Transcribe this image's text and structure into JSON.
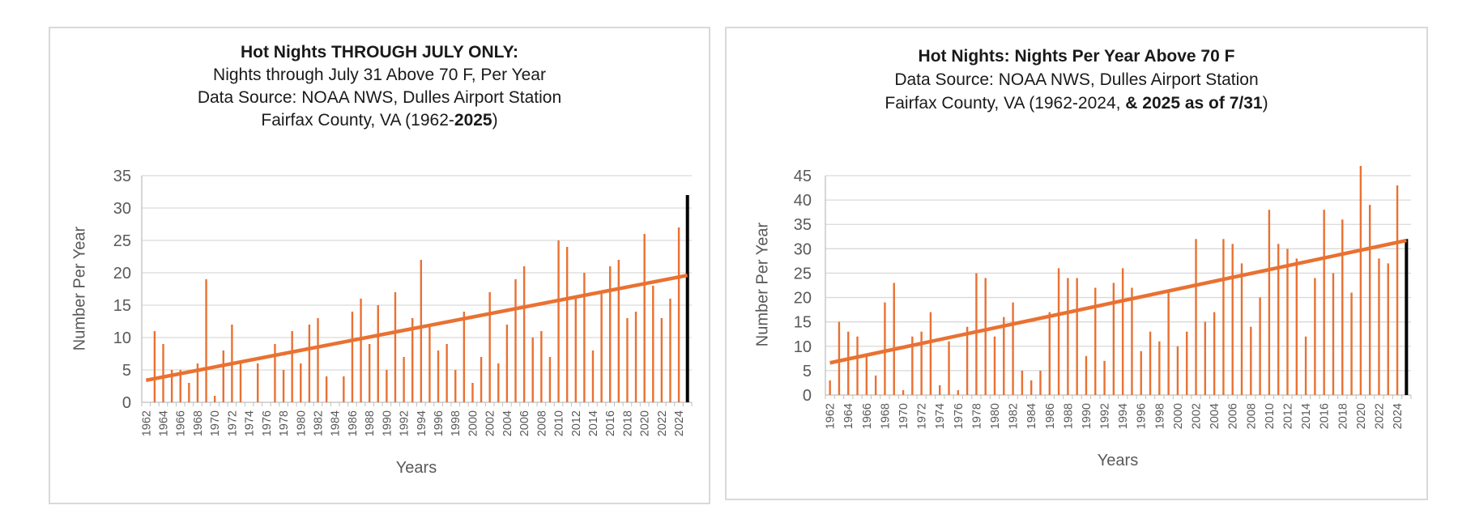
{
  "page": {
    "background": "#FFFFFF",
    "description": "Two Excel-style bar charts of hot nights per year at Dulles Airport"
  },
  "colors": {
    "bar": "#E97132",
    "last_bar": "#000000",
    "trendline": "#E97132",
    "gridline": "#D9D9D9",
    "axis_line": "#BFBFBF",
    "tick_text": "#595959",
    "axis_title_text": "#595959",
    "title_text": "#1A1A1A",
    "panel_border": "#D9D9D9",
    "panel_background": "#FFFFFF"
  },
  "chart_data": [
    {
      "id": "hot-nights-through-july",
      "type": "bar",
      "title_lines": [
        [
          {
            "t": "Hot Nights THROUGH JULY ONLY:",
            "b": true
          }
        ],
        [
          {
            "t": "Nights through July 31 Above 70 F, Per Year",
            "b": false
          }
        ],
        [
          {
            "t": "Data Source: NOAA NWS, Dulles Airport Station",
            "b": false
          }
        ],
        [
          {
            "t": "Fairfax County, VA (1962-",
            "b": false
          },
          {
            "t": "2025",
            "b": true
          },
          {
            "t": ")",
            "b": false
          }
        ]
      ],
      "xlabel": "Years",
      "ylabel": "Number Per Year",
      "ylim": [
        0,
        35
      ],
      "ytick_step": 5,
      "y_tick_labels": [
        "0",
        "5",
        "10",
        "15",
        "20",
        "25",
        "30",
        "35"
      ],
      "x_tick_labels": [
        "1962",
        "1964",
        "1966",
        "1968",
        "1970",
        "1972",
        "1974",
        "1976",
        "1978",
        "1980",
        "1982",
        "1984",
        "1986",
        "1988",
        "1990",
        "1992",
        "1994",
        "1996",
        "1998",
        "2000",
        "2002",
        "2004",
        "2006",
        "2008",
        "2010",
        "2012",
        "2014",
        "2016",
        "2018",
        "2020",
        "2022",
        "2024"
      ],
      "year_start": 1962,
      "year_end": 2025,
      "values": [
        0,
        11,
        9,
        5,
        5,
        3,
        6,
        19,
        1,
        8,
        12,
        6,
        0,
        6,
        0,
        9,
        5,
        11,
        6,
        12,
        13,
        4,
        0,
        4,
        14,
        16,
        9,
        15,
        5,
        17,
        7,
        13,
        22,
        12,
        8,
        9,
        5,
        14,
        3,
        7,
        17,
        6,
        12,
        19,
        21,
        10,
        11,
        7,
        25,
        24,
        16,
        20,
        8,
        17,
        21,
        22,
        13,
        14,
        26,
        18,
        13,
        16,
        27,
        32
      ],
      "last_bar_black": true,
      "trendline": {
        "start_value": 3.4,
        "end_value": 19.6
      },
      "grid": true,
      "legend": "none"
    },
    {
      "id": "hot-nights-full-year",
      "type": "bar",
      "title_lines": [
        [
          {
            "t": "Hot Nights: Nights Per Year Above 70 F",
            "b": true
          }
        ],
        [
          {
            "t": "Data Source: NOAA NWS, Dulles Airport Station",
            "b": false
          }
        ],
        [
          {
            "t": "Fairfax County, VA (1962-2024, ",
            "b": false
          },
          {
            "t": "& 2025 as of 7/31",
            "b": true
          },
          {
            "t": ")",
            "b": false
          }
        ]
      ],
      "xlabel": "Years",
      "ylabel": "Number Per Year",
      "ylim": [
        0,
        45
      ],
      "ytick_step": 5,
      "y_tick_labels": [
        "0",
        "5",
        "10",
        "15",
        "20",
        "25",
        "30",
        "35",
        "40",
        "45"
      ],
      "x_tick_labels": [
        "1962",
        "1964",
        "1966",
        "1968",
        "1970",
        "1972",
        "1974",
        "1976",
        "1978",
        "1980",
        "1982",
        "1984",
        "1986",
        "1988",
        "1990",
        "1992",
        "1994",
        "1996",
        "1998",
        "2000",
        "2002",
        "2004",
        "2006",
        "2008",
        "2010",
        "2012",
        "2014",
        "2016",
        "2018",
        "2020",
        "2022",
        "2024"
      ],
      "year_start": 1962,
      "year_end": 2025,
      "values": [
        3,
        15,
        13,
        12,
        8,
        4,
        19,
        23,
        1,
        12,
        13,
        17,
        2,
        11,
        1,
        14,
        25,
        24,
        12,
        16,
        19,
        5,
        3,
        5,
        17,
        26,
        24,
        24,
        8,
        22,
        7,
        23,
        26,
        22,
        9,
        13,
        11,
        21,
        10,
        13,
        32,
        15,
        17,
        32,
        31,
        27,
        14,
        20,
        38,
        31,
        30,
        28,
        12,
        24,
        38,
        25,
        36,
        21,
        47,
        39,
        28,
        27,
        43,
        32
      ],
      "last_bar_black": true,
      "trendline": {
        "start_value": 6.6,
        "end_value": 31.7
      },
      "grid": true,
      "legend": "none"
    }
  ]
}
